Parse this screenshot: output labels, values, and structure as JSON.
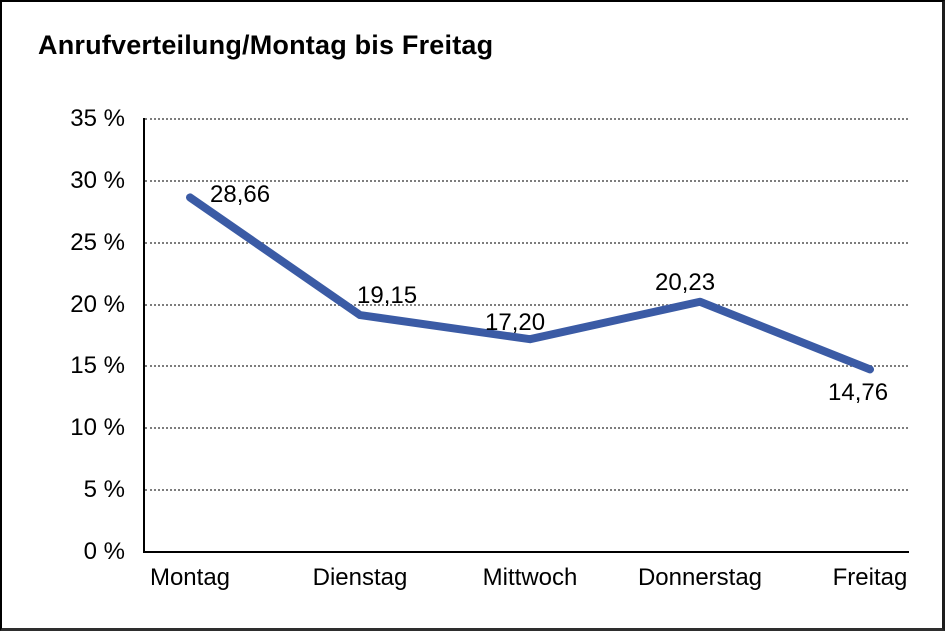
{
  "window": {
    "background": "#ffffff",
    "border_color": "#000000"
  },
  "header": {
    "title": "Anrufverteilung/Montag bis Freitag"
  },
  "chart_data": {
    "type": "line",
    "title": "Anrufverteilung/Montag bis Freitag",
    "categories": [
      "Montag",
      "Dienstag",
      "Mittwoch",
      "Donnerstag",
      "Freitag"
    ],
    "values": [
      28.66,
      19.15,
      17.2,
      20.23,
      14.76
    ],
    "data_labels": [
      "28,66",
      "19,15",
      "17,20",
      "20,23",
      "14,76"
    ],
    "y_ticks": [
      {
        "value": 35,
        "label": "35 %"
      },
      {
        "value": 30,
        "label": "30 %"
      },
      {
        "value": 25,
        "label": "25 %"
      },
      {
        "value": 20,
        "label": "20 %"
      },
      {
        "value": 15,
        "label": "15 %"
      },
      {
        "value": 10,
        "label": "10 %"
      },
      {
        "value": 5,
        "label": "5 %"
      },
      {
        "value": 0,
        "label": "0 %"
      }
    ],
    "ylim": [
      0,
      35
    ],
    "xlabel": "",
    "ylabel": "",
    "grid": true,
    "gridline_style": "dotted",
    "gridline_color": "#7d7d7d",
    "legend": false,
    "line_color": "#3B5BA5",
    "line_width": 8,
    "axis_color": "#000000",
    "text_color": "#000000"
  }
}
